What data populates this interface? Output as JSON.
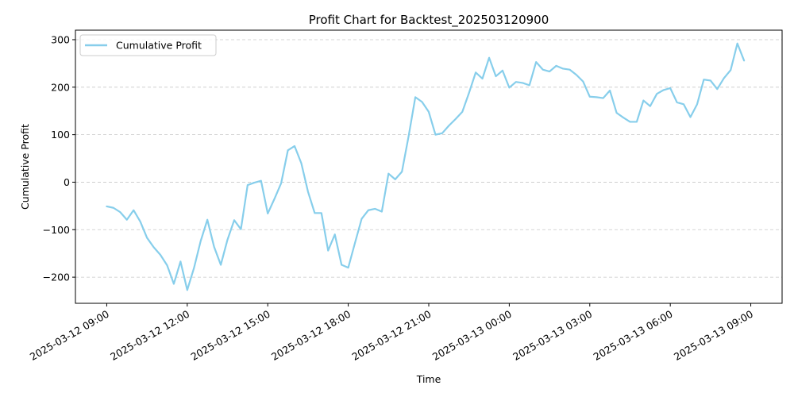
{
  "chart_data": {
    "type": "line",
    "title": "Profit Chart for Backtest_202503120900",
    "xlabel": "Time",
    "ylabel": "Cumulative Profit",
    "series": [
      {
        "name": "Cumulative Profit",
        "color": "#87CEEB",
        "x": [
          "2025-03-12 09:00",
          "2025-03-12 09:15",
          "2025-03-12 09:30",
          "2025-03-12 09:45",
          "2025-03-12 10:00",
          "2025-03-12 10:15",
          "2025-03-12 10:30",
          "2025-03-12 10:45",
          "2025-03-12 11:00",
          "2025-03-12 11:15",
          "2025-03-12 11:30",
          "2025-03-12 11:45",
          "2025-03-12 12:00",
          "2025-03-12 12:15",
          "2025-03-12 12:30",
          "2025-03-12 12:45",
          "2025-03-12 13:00",
          "2025-03-12 13:15",
          "2025-03-12 13:30",
          "2025-03-12 13:45",
          "2025-03-12 14:00",
          "2025-03-12 14:15",
          "2025-03-12 14:30",
          "2025-03-12 14:45",
          "2025-03-12 15:00",
          "2025-03-12 15:15",
          "2025-03-12 15:30",
          "2025-03-12 15:45",
          "2025-03-12 16:00",
          "2025-03-12 16:15",
          "2025-03-12 16:30",
          "2025-03-12 16:45",
          "2025-03-12 17:00",
          "2025-03-12 17:15",
          "2025-03-12 17:30",
          "2025-03-12 17:45",
          "2025-03-12 18:00",
          "2025-03-12 18:15",
          "2025-03-12 18:30",
          "2025-03-12 18:45",
          "2025-03-12 19:00",
          "2025-03-12 19:15",
          "2025-03-12 19:30",
          "2025-03-12 19:45",
          "2025-03-12 20:00",
          "2025-03-12 20:15",
          "2025-03-12 20:30",
          "2025-03-12 20:45",
          "2025-03-12 21:00",
          "2025-03-12 21:15",
          "2025-03-12 21:30",
          "2025-03-12 21:45",
          "2025-03-12 22:00",
          "2025-03-12 22:15",
          "2025-03-12 22:30",
          "2025-03-12 22:45",
          "2025-03-12 23:00",
          "2025-03-12 23:15",
          "2025-03-12 23:30",
          "2025-03-12 23:45",
          "2025-03-13 00:00",
          "2025-03-13 00:15",
          "2025-03-13 00:30",
          "2025-03-13 00:45",
          "2025-03-13 01:00",
          "2025-03-13 01:15",
          "2025-03-13 01:30",
          "2025-03-13 01:45",
          "2025-03-13 02:00",
          "2025-03-13 02:15",
          "2025-03-13 02:30",
          "2025-03-13 02:45",
          "2025-03-13 03:00",
          "2025-03-13 03:15",
          "2025-03-13 03:30",
          "2025-03-13 03:45",
          "2025-03-13 04:00",
          "2025-03-13 04:15",
          "2025-03-13 04:30",
          "2025-03-13 04:45",
          "2025-03-13 05:00",
          "2025-03-13 05:15",
          "2025-03-13 05:30",
          "2025-03-13 05:45",
          "2025-03-13 06:00",
          "2025-03-13 06:15",
          "2025-03-13 06:30",
          "2025-03-13 06:45",
          "2025-03-13 07:00",
          "2025-03-13 07:15",
          "2025-03-13 07:30",
          "2025-03-13 07:45",
          "2025-03-13 08:00",
          "2025-03-13 08:15",
          "2025-03-13 08:30",
          "2025-03-13 08:45"
        ],
        "y": [
          -51,
          -54,
          -63,
          -79,
          -59,
          -83,
          -117,
          -137,
          -153,
          -175,
          -214,
          -167,
          -227,
          -181,
          -124,
          -79,
          -136,
          -174,
          -121,
          -80,
          -99,
          -6,
          -1,
          3,
          -66,
          -35,
          -2,
          67,
          76,
          40,
          -20,
          -65,
          -65,
          -144,
          -110,
          -174,
          -180,
          -128,
          -77,
          -59,
          -56,
          -62,
          18,
          6,
          22,
          97,
          179,
          169,
          148,
          100,
          103,
          119,
          133,
          148,
          188,
          231,
          218,
          262,
          223,
          235,
          199,
          211,
          209,
          204,
          253,
          237,
          233,
          245,
          239,
          237,
          226,
          212,
          180,
          179,
          177,
          193,
          146,
          136,
          127,
          127,
          172,
          160,
          186,
          194,
          198,
          168,
          164,
          137,
          164,
          216,
          214,
          196,
          219,
          236,
          292,
          256
        ]
      }
    ],
    "xticks": [
      "2025-03-12 09:00",
      "2025-03-12 12:00",
      "2025-03-12 15:00",
      "2025-03-12 18:00",
      "2025-03-12 21:00",
      "2025-03-13 00:00",
      "2025-03-13 03:00",
      "2025-03-13 06:00",
      "2025-03-13 09:00"
    ],
    "xlim": [
      "2025-03-12 07:50",
      "2025-03-13 10:10"
    ],
    "yticks": [
      -200,
      -100,
      0,
      100,
      200,
      300
    ],
    "ylim": [
      -255,
      320
    ],
    "grid": "y-dashed",
    "legend": "upper-left"
  }
}
